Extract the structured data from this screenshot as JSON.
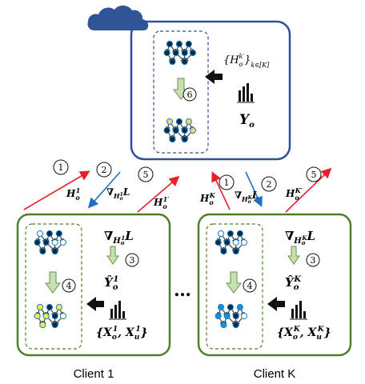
{
  "server": {
    "embeddings_set": "{H",
    "embeddings_sup": "k′",
    "embeddings_sub": "o",
    "embeddings_close": "}",
    "embeddings_index": "k∈[K]",
    "labels": "Y",
    "labels_sub": "o",
    "step_number": "6"
  },
  "arrows": {
    "step1": "1",
    "step2": "2",
    "step5": "5",
    "c1_up_label": "H",
    "c1_up_sub": "o",
    "c1_up_sup": "1",
    "c1_down_label": "∇",
    "c1_down_sub": "H",
    "c1_down_subsub": "o",
    "c1_down_subsup": "1",
    "c1_down_tail": "L",
    "c1_up2_label": "H",
    "c1_up2_sub": "o",
    "c1_up2_sup": "1′",
    "ck_up_label": "H",
    "ck_up_sub": "o",
    "ck_up_sup": "K",
    "ck_down_label": "∇",
    "ck_down_sub": "H",
    "ck_down_subsub": "o",
    "ck_down_subsup": "K",
    "ck_down_tail": "L",
    "ck_up2_label": "H",
    "ck_up2_sub": "o",
    "ck_up2_sup": "K′"
  },
  "clients": [
    {
      "name": "Client 1",
      "grad_label": "∇",
      "grad_sub": "H",
      "grad_subsub": "o",
      "grad_subsup": "1",
      "grad_tail": "L",
      "pred_label": "Ŷ",
      "pred_sub": "o",
      "pred_sup": "1",
      "data_open": "{X",
      "data_sub1": "o",
      "data_sup1": "1",
      "data_mid": ", X",
      "data_sub2": "u",
      "data_sup2": "1",
      "data_close": "}",
      "step_a": "3",
      "step_b": "4",
      "highlight_color": "#f0f542"
    },
    {
      "name": "Client K",
      "grad_label": "∇",
      "grad_sub": "H",
      "grad_subsub": "o",
      "grad_subsup": "K",
      "grad_tail": "L",
      "pred_label": "Ŷ",
      "pred_sub": "o",
      "pred_sup": "K",
      "data_open": "{X",
      "data_sub1": "o",
      "data_sup1": "K",
      "data_mid": ", X",
      "data_sub2": "u",
      "data_sup2": "K",
      "data_close": "}",
      "step_a": "3",
      "step_b": "4",
      "highlight_color": "#1a8fd6"
    }
  ],
  "ellipsis": "…",
  "colors": {
    "server_border": "#2f4f9e",
    "client_border": "#4f7f2a",
    "cloud": "#2f5597",
    "up_arrow": "#e8202a",
    "down_arrow": "#1f6fc4",
    "down_arrow_fill": "#c6e0b4",
    "node_dark": "#0a2a4a",
    "node_light": "#ffffff",
    "node_yellow": "#f5d76e"
  }
}
